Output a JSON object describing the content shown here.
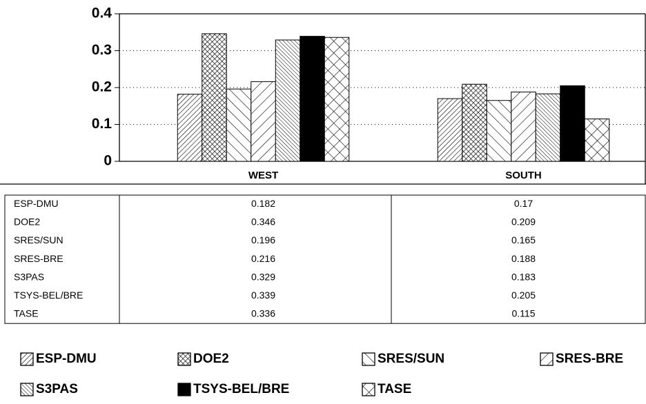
{
  "chart_data": {
    "type": "bar",
    "categories": [
      "WEST",
      "SOUTH"
    ],
    "series": [
      {
        "name": "ESP-DMU",
        "color": "#000000",
        "pattern": "fwd-dense",
        "values": [
          0.182,
          0.17
        ]
      },
      {
        "name": "DOE2",
        "color": "#000000",
        "pattern": "cross-dense",
        "values": [
          0.346,
          0.209
        ]
      },
      {
        "name": "SRES/SUN",
        "color": "#000000",
        "pattern": "back-sparse",
        "values": [
          0.196,
          0.165
        ]
      },
      {
        "name": "SRES-BRE",
        "color": "#000000",
        "pattern": "fwd-sparse",
        "values": [
          0.216,
          0.188
        ]
      },
      {
        "name": "S3PAS",
        "color": "#000000",
        "pattern": "back-dense",
        "values": [
          0.329,
          0.183
        ]
      },
      {
        "name": "TSYS-BEL/BRE",
        "color": "#000000",
        "pattern": "solid",
        "values": [
          0.339,
          0.205
        ]
      },
      {
        "name": "TASE",
        "color": "#000000",
        "pattern": "cross-sparse",
        "values": [
          0.336,
          0.115
        ]
      }
    ],
    "ylim": [
      0,
      0.4
    ],
    "yticks": [
      0,
      0.1,
      0.2,
      0.3,
      0.4
    ],
    "grid": true,
    "data_table": true
  }
}
